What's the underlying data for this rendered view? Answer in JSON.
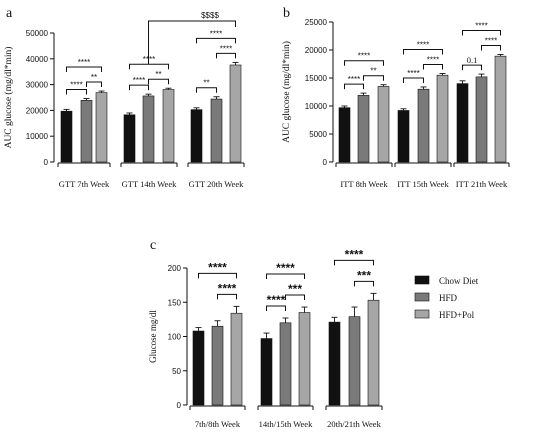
{
  "panel_labels": [
    "a",
    "b",
    "c"
  ],
  "bar_colors": {
    "Chow Diet": "#111111",
    "HFD": "#7a7a7a",
    "HFD+Pol": "#a6a6a6"
  },
  "chart_data": [
    {
      "id": "a",
      "type": "bar",
      "ylabel": "AUC glucose (mg/dl*min)",
      "xlabel": "",
      "ylim": [
        0,
        50000
      ],
      "yticks": [
        0,
        10000,
        20000,
        30000,
        40000,
        50000
      ],
      "categories": [
        "GTT 7th Week",
        "GTT 14th Week",
        "GTT 20th Week"
      ],
      "series": [
        {
          "values": [
            19700,
            18300,
            20300
          ],
          "errors": [
            700,
            700,
            700
          ]
        },
        {
          "values": [
            23900,
            25600,
            24400
          ],
          "errors": [
            700,
            700,
            900
          ]
        },
        {
          "values": [
            26900,
            28100,
            37600
          ],
          "errors": [
            600,
            500,
            1000
          ]
        }
      ],
      "significance": [
        {
          "group": 0,
          "from": 0,
          "to": 1,
          "label": "****"
        },
        {
          "group": 0,
          "from": 1,
          "to": 2,
          "label": "**"
        },
        {
          "group": 0,
          "from": 0,
          "to": 2,
          "label": "****"
        },
        {
          "group": 1,
          "from": 0,
          "to": 1,
          "label": "****"
        },
        {
          "group": 1,
          "from": 1,
          "to": 2,
          "label": "**"
        },
        {
          "group": 1,
          "from": 0,
          "to": 2,
          "label": "****"
        },
        {
          "group": 2,
          "from": 0,
          "to": 1,
          "label": "**"
        },
        {
          "group": 2,
          "from": 1,
          "to": 2,
          "label": "****"
        },
        {
          "group": 2,
          "from": 0,
          "to": 2,
          "label": "****"
        }
      ],
      "cross_group": [
        {
          "from_group": 1,
          "to_group": 2,
          "label": "$$$$"
        }
      ]
    },
    {
      "id": "b",
      "type": "bar",
      "ylabel": "AUC glucose (mg/dl*min)",
      "xlabel": "",
      "ylim": [
        0,
        25000
      ],
      "yticks": [
        0,
        5000,
        10000,
        15000,
        20000,
        25000
      ],
      "categories": [
        "ITT 8th Week",
        "ITT 15th Week",
        "ITT 21th Week"
      ],
      "series": [
        {
          "values": [
            9700,
            9200,
            14000
          ],
          "errors": [
            300,
            300,
            500
          ]
        },
        {
          "values": [
            11900,
            13000,
            15200
          ],
          "errors": [
            400,
            400,
            500
          ]
        },
        {
          "values": [
            13500,
            15500,
            18900
          ],
          "errors": [
            300,
            300,
            300
          ]
        }
      ],
      "significance": [
        {
          "group": 0,
          "from": 0,
          "to": 1,
          "label": "****"
        },
        {
          "group": 0,
          "from": 1,
          "to": 2,
          "label": "**"
        },
        {
          "group": 0,
          "from": 0,
          "to": 2,
          "label": "****"
        },
        {
          "group": 1,
          "from": 0,
          "to": 1,
          "label": "****"
        },
        {
          "group": 1,
          "from": 1,
          "to": 2,
          "label": "****"
        },
        {
          "group": 1,
          "from": 0,
          "to": 2,
          "label": "****"
        },
        {
          "group": 2,
          "from": 0,
          "to": 1,
          "label": "0.1"
        },
        {
          "group": 2,
          "from": 1,
          "to": 2,
          "label": "****"
        },
        {
          "group": 2,
          "from": 0,
          "to": 2,
          "label": "****"
        }
      ]
    },
    {
      "id": "c",
      "type": "bar",
      "ylabel": "Glucose mg/dl",
      "xlabel": "",
      "ylim": [
        0,
        200
      ],
      "yticks": [
        0,
        50,
        100,
        150,
        200
      ],
      "categories": [
        "7th/8th Week",
        "14th/15th Week",
        "20th/21th Week"
      ],
      "series": [
        {
          "name": "Chow Diet",
          "values": [
            108,
            97,
            121
          ],
          "errors": [
            5,
            8,
            7
          ]
        },
        {
          "name": "HFD",
          "values": [
            115,
            120,
            129
          ],
          "errors": [
            8,
            7,
            14
          ]
        },
        {
          "name": "HFD+Pol",
          "values": [
            134,
            135,
            153
          ],
          "errors": [
            10,
            8,
            10
          ]
        }
      ],
      "legend": [
        "Chow Diet",
        "HFD",
        "HFD+Pol"
      ],
      "legend_position": "right",
      "significance": [
        {
          "group": 0,
          "from": 1,
          "to": 2,
          "label": "****"
        },
        {
          "group": 0,
          "from": 0,
          "to": 2,
          "label": "****"
        },
        {
          "group": 1,
          "from": 0,
          "to": 1,
          "label": "****"
        },
        {
          "group": 1,
          "from": 1,
          "to": 2,
          "label": "***"
        },
        {
          "group": 1,
          "from": 0,
          "to": 2,
          "label": "****"
        },
        {
          "group": 2,
          "from": 1,
          "to": 2,
          "label": "***"
        },
        {
          "group": 2,
          "from": 0,
          "to": 2,
          "label": "****"
        }
      ]
    }
  ]
}
